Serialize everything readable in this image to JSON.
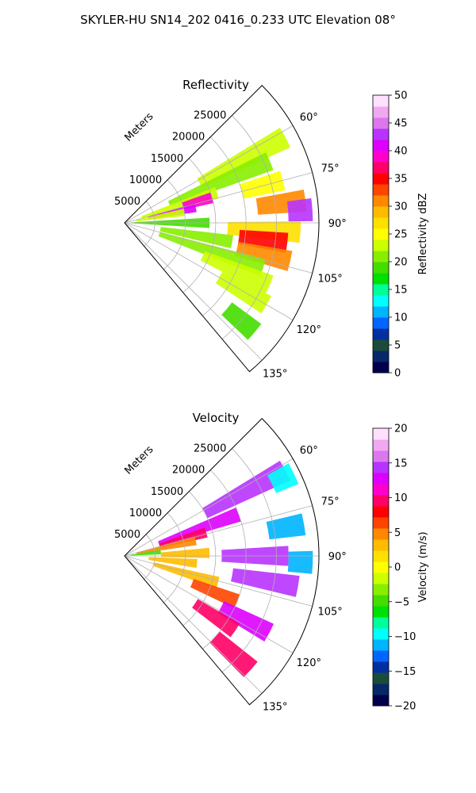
{
  "figure": {
    "title": "SKYLER-HU  SN14_202  0416_0.233 UTC Elevation 08°"
  },
  "chart_data": [
    {
      "type": "heatmap",
      "subtype": "polar-sector",
      "title": "Reflectivity",
      "radial_label": "Meters",
      "radial_ticks": [
        5000,
        10000,
        15000,
        20000,
        25000
      ],
      "range_max": 32000,
      "azimuth_min": 45,
      "azimuth_max": 140,
      "azimuth_ticks": [
        "60°",
        "75°",
        "90°",
        "105°",
        "120°",
        "135°"
      ],
      "azimuth_tick_values": [
        60,
        75,
        90,
        105,
        120,
        135
      ],
      "grid": true,
      "colorbar": {
        "label": "Reflectivity dBZ",
        "min": 0,
        "max": 50,
        "ticks": [
          "0",
          "5",
          "10",
          "15",
          "20",
          "25",
          "30",
          "35",
          "40",
          "45",
          "50"
        ],
        "colors": [
          "#00004d",
          "#06286b",
          "#1b4b3a",
          "#0030a0",
          "#0066ff",
          "#00b4ff",
          "#00ffff",
          "#00ff99",
          "#00e000",
          "#44dd00",
          "#88ee00",
          "#ccff00",
          "#ffff00",
          "#ffe000",
          "#ffbb00",
          "#ff8800",
          "#ff4400",
          "#ff0000",
          "#ff0066",
          "#ff00cc",
          "#dd00ff",
          "#b833ff",
          "#dd77ee",
          "#f0a8f0",
          "#ffe0ff"
        ]
      },
      "echo_cells": [
        {
          "az": 62,
          "r0": 14000,
          "r1": 30000,
          "value": 22
        },
        {
          "az": 67,
          "r0": 8000,
          "r1": 26000,
          "value": 21
        },
        {
          "az": 72,
          "r0": 3000,
          "r1": 16000,
          "value": 23
        },
        {
          "az": 74,
          "r0": 10000,
          "r1": 15000,
          "value": 38
        },
        {
          "az": 75,
          "r0": 20000,
          "r1": 27000,
          "value": 24
        },
        {
          "az": 78,
          "r0": 4000,
          "r1": 12000,
          "value": 40
        },
        {
          "az": 80,
          "r0": 2000,
          "r1": 10000,
          "value": 22
        },
        {
          "az": 83,
          "r0": 22000,
          "r1": 30000,
          "value": 30
        },
        {
          "az": 86,
          "r0": 27000,
          "r1": 31000,
          "value": 42
        },
        {
          "az": 90,
          "r0": 1000,
          "r1": 14000,
          "value": 19
        },
        {
          "az": 93,
          "r0": 17000,
          "r1": 29000,
          "value": 26
        },
        {
          "az": 97,
          "r0": 19000,
          "r1": 27000,
          "value": 35
        },
        {
          "az": 100,
          "r0": 6000,
          "r1": 18000,
          "value": 20
        },
        {
          "az": 103,
          "r0": 19000,
          "r1": 28000,
          "value": 30
        },
        {
          "az": 108,
          "r0": 6000,
          "r1": 24000,
          "value": 21
        },
        {
          "az": 113,
          "r0": 14000,
          "r1": 26000,
          "value": 22
        },
        {
          "az": 120,
          "r0": 18000,
          "r1": 27000,
          "value": 23
        },
        {
          "az": 130,
          "r0": 22000,
          "r1": 28000,
          "value": 18
        }
      ]
    },
    {
      "type": "heatmap",
      "subtype": "polar-sector",
      "title": "Velocity",
      "radial_label": "Meters",
      "radial_ticks": [
        5000,
        10000,
        15000,
        20000,
        25000
      ],
      "range_max": 32000,
      "azimuth_min": 45,
      "azimuth_max": 140,
      "azimuth_ticks": [
        "60°",
        "75°",
        "90°",
        "105°",
        "120°",
        "135°"
      ],
      "azimuth_tick_values": [
        60,
        75,
        90,
        105,
        120,
        135
      ],
      "grid": true,
      "colorbar": {
        "label": "Velocity (m/s)",
        "min": -20,
        "max": 20,
        "ticks": [
          "−20",
          "−15",
          "−10",
          "−5",
          "0",
          "5",
          "10",
          "15",
          "20"
        ],
        "colors": [
          "#00004d",
          "#06286b",
          "#1b4b3a",
          "#0030a0",
          "#0066ff",
          "#00b4ff",
          "#00ffff",
          "#00ff99",
          "#00e000",
          "#44dd00",
          "#88ee00",
          "#ccff00",
          "#ffff00",
          "#ffe000",
          "#ffbb00",
          "#ff8800",
          "#ff4400",
          "#ff0000",
          "#ff0066",
          "#ff00cc",
          "#dd00ff",
          "#b833ff",
          "#dd77ee",
          "#f0a8f0",
          "#ffe0ff"
        ]
      },
      "echo_cells": [
        {
          "az": 62,
          "r0": 15000,
          "r1": 30000,
          "value": 14
        },
        {
          "az": 64,
          "r0": 27000,
          "r1": 31000,
          "value": -10
        },
        {
          "az": 70,
          "r0": 6000,
          "r1": 20000,
          "value": 13
        },
        {
          "az": 74,
          "r0": 6000,
          "r1": 14000,
          "value": 9
        },
        {
          "az": 78,
          "r0": 2000,
          "r1": 12000,
          "value": 5
        },
        {
          "az": 80,
          "r0": 24000,
          "r1": 30000,
          "value": -11
        },
        {
          "az": 84,
          "r0": 1000,
          "r1": 6000,
          "value": -5
        },
        {
          "az": 88,
          "r0": 6000,
          "r1": 14000,
          "value": 3
        },
        {
          "az": 90,
          "r0": 16000,
          "r1": 27000,
          "value": 14
        },
        {
          "az": 92,
          "r0": 27000,
          "r1": 31000,
          "value": -11
        },
        {
          "az": 96,
          "r0": 4000,
          "r1": 12000,
          "value": 3
        },
        {
          "az": 100,
          "r0": 18000,
          "r1": 29000,
          "value": 14
        },
        {
          "az": 106,
          "r0": 5000,
          "r1": 16000,
          "value": 3
        },
        {
          "az": 112,
          "r0": 12000,
          "r1": 20000,
          "value": 7
        },
        {
          "az": 118,
          "r0": 18000,
          "r1": 27000,
          "value": 13
        },
        {
          "az": 124,
          "r0": 14000,
          "r1": 22000,
          "value": 9
        },
        {
          "az": 132,
          "r0": 20000,
          "r1": 28000,
          "value": 10
        }
      ]
    }
  ]
}
